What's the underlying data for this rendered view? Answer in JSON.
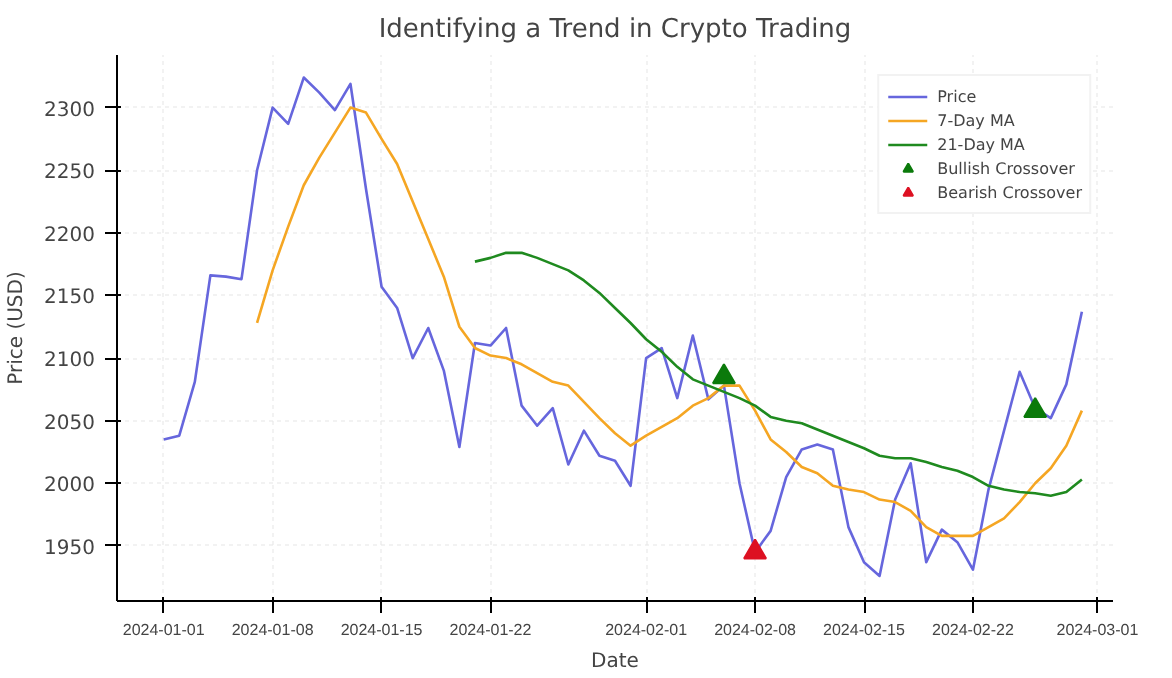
{
  "chart_data": {
    "type": "line",
    "title": "Identifying a Trend in Crypto Trading",
    "xlabel": "Date",
    "ylabel": "Price (USD)",
    "x": [
      "2024-01-01",
      "2024-01-02",
      "2024-01-03",
      "2024-01-04",
      "2024-01-05",
      "2024-01-06",
      "2024-01-07",
      "2024-01-08",
      "2024-01-09",
      "2024-01-10",
      "2024-01-11",
      "2024-01-12",
      "2024-01-13",
      "2024-01-14",
      "2024-01-15",
      "2024-01-16",
      "2024-01-17",
      "2024-01-18",
      "2024-01-19",
      "2024-01-20",
      "2024-01-21",
      "2024-01-22",
      "2024-01-23",
      "2024-01-24",
      "2024-01-25",
      "2024-01-26",
      "2024-01-27",
      "2024-01-28",
      "2024-01-29",
      "2024-01-30",
      "2024-01-31",
      "2024-02-01",
      "2024-02-02",
      "2024-02-03",
      "2024-02-04",
      "2024-02-05",
      "2024-02-06",
      "2024-02-07",
      "2024-02-08",
      "2024-02-09",
      "2024-02-10",
      "2024-02-11",
      "2024-02-12",
      "2024-02-13",
      "2024-02-14",
      "2024-02-15",
      "2024-02-16",
      "2024-02-17",
      "2024-02-18",
      "2024-02-19",
      "2024-02-20",
      "2024-02-21",
      "2024-02-22",
      "2024-02-23",
      "2024-02-24",
      "2024-02-25",
      "2024-02-26",
      "2024-02-27",
      "2024-02-28",
      "2024-02-29"
    ],
    "series": [
      {
        "name": "Price",
        "color": "#6666dd",
        "values": [
          2035,
          2038,
          2081,
          2166,
          2165,
          2163,
          2250,
          2300,
          2287,
          2324,
          2312,
          2298,
          2319,
          2235,
          2157,
          2140,
          2100,
          2124,
          2090,
          2029,
          2112,
          2110,
          2124,
          2062,
          2046,
          2060,
          2015,
          2042,
          2022,
          2018,
          1998,
          2100,
          2108,
          2068,
          2118,
          2067,
          2078,
          2000,
          1945,
          1962,
          2005,
          2027,
          2031,
          2027,
          1965,
          1937,
          1926,
          1987,
          2016,
          1937,
          1963,
          1953,
          1931,
          1995,
          2042,
          2089,
          2060,
          2052,
          2079,
          2137
        ]
      },
      {
        "name": "7-Day MA",
        "color": "#f5a623",
        "values": [
          null,
          null,
          null,
          null,
          null,
          null,
          2128,
          2170,
          2205,
          2238,
          2260,
          2280,
          2300,
          2296,
          2275,
          2255,
          2225,
          2195,
          2165,
          2125,
          2108,
          2102,
          2100,
          2095,
          2088,
          2081,
          2078,
          2065,
          2052,
          2040,
          2030,
          2038,
          2045,
          2052,
          2062,
          2068,
          2078,
          2078,
          2058,
          2035,
          2025,
          2013,
          2008,
          1998,
          1995,
          1993,
          1987,
          1985,
          1978,
          1965,
          1958,
          1958,
          1958,
          1965,
          1972,
          1985,
          2000,
          2012,
          2030,
          2058
        ]
      },
      {
        "name": "21-Day MA",
        "color": "#1f8a1f",
        "values": [
          null,
          null,
          null,
          null,
          null,
          null,
          null,
          null,
          null,
          null,
          null,
          null,
          null,
          null,
          null,
          null,
          null,
          null,
          null,
          null,
          2177,
          2180,
          2184,
          2184,
          2180,
          2175,
          2170,
          2162,
          2152,
          2140,
          2128,
          2115,
          2105,
          2093,
          2083,
          2078,
          2073,
          2068,
          2062,
          2053,
          2050,
          2048,
          2043,
          2038,
          2033,
          2028,
          2022,
          2020,
          2020,
          2017,
          2013,
          2010,
          2005,
          1998,
          1995,
          1993,
          1992,
          1990,
          1993,
          2003
        ]
      },
      {
        "name": "Bullish Crossover",
        "type": "scatter",
        "marker": "triangle",
        "color": "#0b7a0b",
        "x": [
          "2024-02-06",
          "2024-02-26"
        ],
        "values": [
          2085,
          2058
        ]
      },
      {
        "name": "Bearish Crossover",
        "type": "scatter",
        "marker": "triangle",
        "color": "#dd1122",
        "x": [
          "2024-02-08"
        ],
        "values": [
          1945
        ]
      }
    ],
    "xlim": [
      "2023-12-29",
      "2024-03-02"
    ],
    "xticks": [
      "2024-01-01",
      "2024-01-08",
      "2024-01-15",
      "2024-01-22",
      "2024-02-01",
      "2024-02-08",
      "2024-02-15",
      "2024-02-22",
      "2024-03-01"
    ],
    "ylim": [
      1906,
      2342
    ],
    "yticks": [
      1950,
      2000,
      2050,
      2100,
      2150,
      2200,
      2250,
      2300
    ],
    "grid": true,
    "legend": "top right"
  }
}
